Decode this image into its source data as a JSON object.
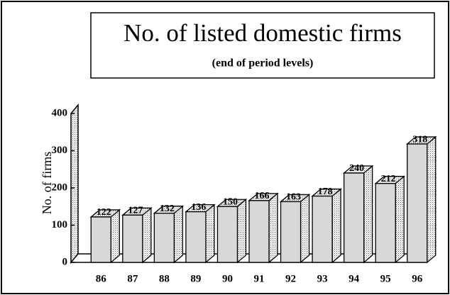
{
  "chart_data": {
    "type": "bar3d",
    "title": "No. of listed domestic firms",
    "subtitle": "(end of period levels)",
    "y_label": "No. of firms",
    "categories": [
      "86",
      "87",
      "88",
      "89",
      "90",
      "91",
      "92",
      "93",
      "94",
      "95",
      "96"
    ],
    "values": [
      122,
      127,
      132,
      136,
      150,
      166,
      163,
      178,
      240,
      212,
      318
    ],
    "color": "#d8d8d8",
    "ylim": [
      0,
      400
    ],
    "yticks": [
      0,
      100,
      200,
      300,
      400
    ],
    "grid": false
  }
}
